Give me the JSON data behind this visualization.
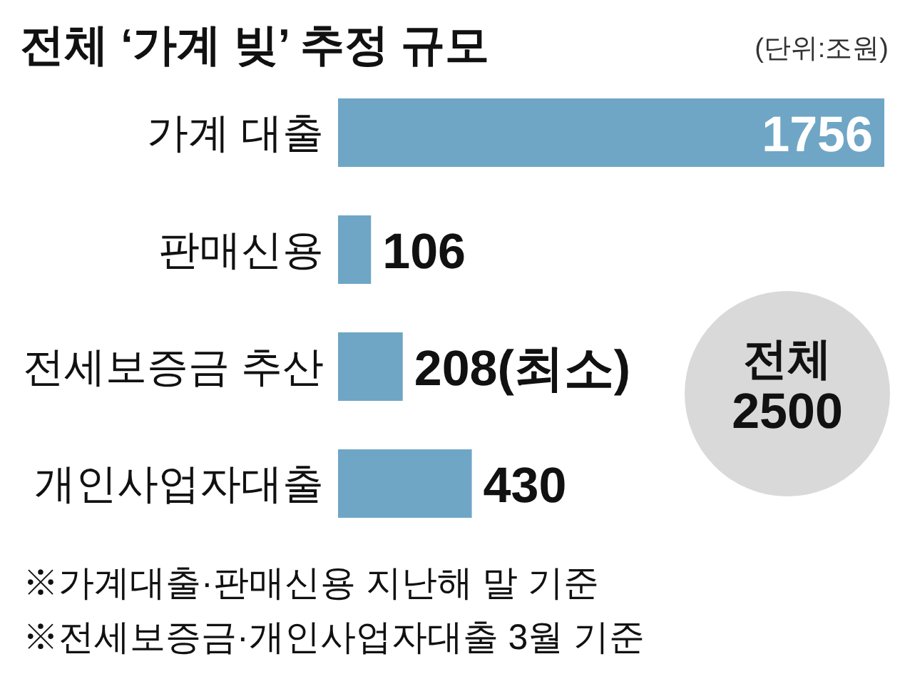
{
  "chart_data": {
    "type": "bar",
    "orientation": "horizontal",
    "title": "전체 ‘가계 빚’ 추정 규모",
    "subtitle": "(단위:조원)",
    "categories": [
      "가계 대출",
      "판매신용",
      "전세보증금 추산",
      "개인사업자대출"
    ],
    "values": [
      1756,
      106,
      208,
      430
    ],
    "value_labels": [
      "1756",
      "106",
      "208(최소)",
      "430"
    ],
    "color": "#6fa6c6",
    "annotations": [
      "전체 2500",
      "※가계대출·판매신용 지난해 말 기준",
      "※전세보증금·개인사업자대출 3월 기준"
    ]
  }
}
